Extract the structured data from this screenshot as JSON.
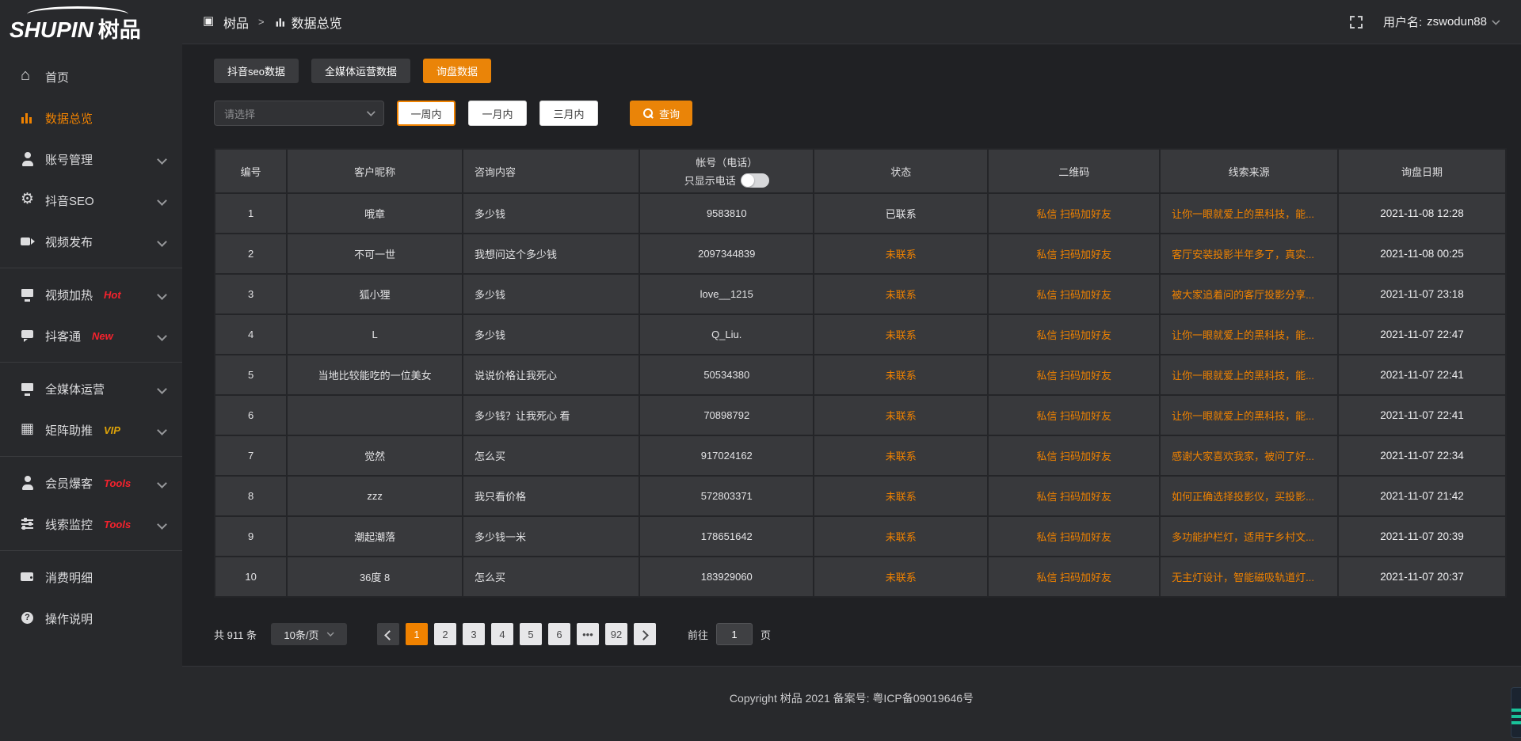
{
  "colors": {
    "accent": "#f08200",
    "badge_red": "#f5222d",
    "badge_yellow": "#e0a408",
    "status_contacted": "#e8e8ea",
    "status_uncontacted": "#f08200"
  },
  "logo": {
    "en": "SHUPIN",
    "cn": "树品"
  },
  "header": {
    "breadcrumb_root": "树品",
    "breadcrumb_sep": ">",
    "breadcrumb_current": "数据总览",
    "fullscreen_icon": "fullscreen-icon",
    "username_label": "用户名:",
    "username": "zswodun88"
  },
  "sidebar": {
    "items": [
      {
        "label": "首页",
        "icon": "home-icon",
        "active": false,
        "chevron": false,
        "divider_after": false
      },
      {
        "label": "数据总览",
        "icon": "bar-chart-icon",
        "active": true,
        "chevron": false,
        "divider_after": false
      },
      {
        "label": "账号管理",
        "icon": "user-icon",
        "active": false,
        "chevron": true,
        "divider_after": false
      },
      {
        "label": "抖音SEO",
        "icon": "gear-icon",
        "active": false,
        "chevron": true,
        "divider_after": false
      },
      {
        "label": "视频发布",
        "icon": "video-publish-icon",
        "active": false,
        "chevron": true,
        "divider_after": true
      },
      {
        "label": "视频加热",
        "icon": "monitor-hot-icon",
        "badge": "Hot",
        "badge_color": "#f5222d",
        "active": false,
        "chevron": true,
        "divider_after": false
      },
      {
        "label": "抖客通",
        "icon": "chat-icon",
        "badge": "New",
        "badge_color": "#f5222d",
        "active": false,
        "chevron": true,
        "divider_after": true
      },
      {
        "label": "全媒体运营",
        "icon": "monitor-icon",
        "active": false,
        "chevron": true,
        "divider_after": false
      },
      {
        "label": "矩阵助推",
        "icon": "grid-icon",
        "badge": "VIP",
        "badge_color": "#e0a408",
        "active": false,
        "chevron": true,
        "divider_after": true
      },
      {
        "label": "会员爆客",
        "icon": "member-icon",
        "badge": "Tools",
        "badge_color": "#f5222d",
        "active": false,
        "chevron": true,
        "divider_after": false
      },
      {
        "label": "线索监控",
        "icon": "sliders-icon",
        "badge": "Tools",
        "badge_color": "#f5222d",
        "active": false,
        "chevron": true,
        "divider_after": true
      },
      {
        "label": "消费明细",
        "icon": "wallet-icon",
        "active": false,
        "chevron": false,
        "divider_after": false
      },
      {
        "label": "操作说明",
        "icon": "question-icon",
        "active": false,
        "chevron": false,
        "divider_after": false
      }
    ]
  },
  "tabs": [
    {
      "label": "抖音seo数据",
      "active": false
    },
    {
      "label": "全媒体运营数据",
      "active": false
    },
    {
      "label": "询盘数据",
      "active": true
    }
  ],
  "filters": {
    "select_placeholder": "请选择",
    "period_buttons": [
      "一周内",
      "一月内",
      "三月内"
    ],
    "active_period": "一周内",
    "query_label": "查询",
    "query_icon": "search-icon"
  },
  "table": {
    "columns": [
      "编号",
      "客户昵称",
      "咨询内容",
      "帐号（电话）",
      "状态",
      "二维码",
      "线索来源",
      "询盘日期"
    ],
    "phone_toggle_label": "只显示电话",
    "phone_toggle_on": false,
    "rows": [
      {
        "id": "1",
        "nickname": "哦章",
        "content": "多少钱",
        "account": "9583810",
        "status": "已联系",
        "status_type": "contacted",
        "qrcode": "私信 扫码加好友",
        "source": "让你一眼就爱上的黑科技，能...",
        "date": "2021-11-08 12:28"
      },
      {
        "id": "2",
        "nickname": "不可一世",
        "content": "我想问这个多少钱",
        "account": "2097344839",
        "status": "未联系",
        "status_type": "uncontacted",
        "qrcode": "私信 扫码加好友",
        "source": "客厅安装投影半年多了，真实...",
        "date": "2021-11-08 00:25"
      },
      {
        "id": "3",
        "nickname": "狐小狸",
        "content": "多少钱",
        "account": "love__1215",
        "status": "未联系",
        "status_type": "uncontacted",
        "qrcode": "私信 扫码加好友",
        "source": "被大家追着问的客厅投影分享...",
        "date": "2021-11-07 23:18"
      },
      {
        "id": "4",
        "nickname": "L",
        "content": "多少钱",
        "account": "Q_Liu.",
        "status": "未联系",
        "status_type": "uncontacted",
        "qrcode": "私信 扫码加好友",
        "source": "让你一眼就爱上的黑科技，能...",
        "date": "2021-11-07 22:47"
      },
      {
        "id": "5",
        "nickname": "当地比较能吃的一位美女",
        "content": "说说价格让我死心",
        "account": "50534380",
        "status": "未联系",
        "status_type": "uncontacted",
        "qrcode": "私信 扫码加好友",
        "source": "让你一眼就爱上的黑科技，能...",
        "date": "2021-11-07 22:41"
      },
      {
        "id": "6",
        "nickname": "",
        "content": "多少钱？让我死心 看",
        "account": "70898792",
        "status": "未联系",
        "status_type": "uncontacted",
        "qrcode": "私信 扫码加好友",
        "source": "让你一眼就爱上的黑科技，能...",
        "date": "2021-11-07 22:41"
      },
      {
        "id": "7",
        "nickname": "觉然",
        "content": "怎么买",
        "account": "917024162",
        "status": "未联系",
        "status_type": "uncontacted",
        "qrcode": "私信 扫码加好友",
        "source": "感谢大家喜欢我家，被问了好...",
        "date": "2021-11-07 22:34"
      },
      {
        "id": "8",
        "nickname": "zzz",
        "content": "我只看价格",
        "account": "572803371",
        "status": "未联系",
        "status_type": "uncontacted",
        "qrcode": "私信 扫码加好友",
        "source": "如何正确选择投影仪，买投影...",
        "date": "2021-11-07 21:42"
      },
      {
        "id": "9",
        "nickname": "潮起潮落",
        "content": "多少钱一米",
        "account": "178651642",
        "status": "未联系",
        "status_type": "uncontacted",
        "qrcode": "私信 扫码加好友",
        "source": "多功能护栏灯，适用于乡村文...",
        "date": "2021-11-07 20:39"
      },
      {
        "id": "10",
        "nickname": "36度 8",
        "content": "怎么买",
        "account": "183929060",
        "status": "未联系",
        "status_type": "uncontacted",
        "qrcode": "私信 扫码加好友",
        "source": "无主灯设计，智能磁吸轨道灯...",
        "date": "2021-11-07 20:37"
      }
    ]
  },
  "pagination": {
    "total_label": "共 911 条",
    "page_size_label": "10条/页",
    "prev_icon": "chevron-left-icon",
    "next_icon": "chevron-right-icon",
    "pages": [
      "1",
      "2",
      "3",
      "4",
      "5",
      "6",
      "•••",
      "92"
    ],
    "active_page": "1",
    "goto_label": "前往",
    "goto_value": "1",
    "goto_suffix": "页"
  },
  "footer": {
    "copyright": "Copyright 树品 2021 备案号: 粤ICP备09019646号"
  }
}
